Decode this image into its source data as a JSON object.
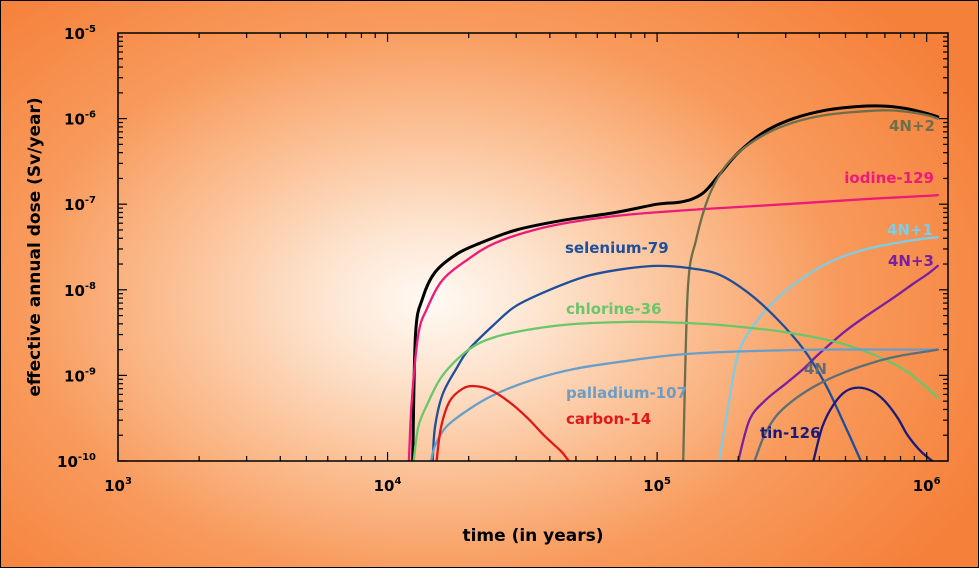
{
  "chart_data": {
    "type": "line",
    "xlabel": "time (in years)",
    "ylabel": "effective annual dose (Sv/year)",
    "x_scale": "log",
    "y_scale": "log",
    "xlim": [
      1000,
      1200000
    ],
    "ylim": [
      1e-10,
      1e-05
    ],
    "x_ticks": [
      {
        "value": 1000,
        "base": "10",
        "exp": "3"
      },
      {
        "value": 10000,
        "base": "10",
        "exp": "4"
      },
      {
        "value": 100000,
        "base": "10",
        "exp": "5"
      },
      {
        "value": 1000000,
        "base": "10",
        "exp": "6"
      }
    ],
    "y_ticks": [
      {
        "value": 1e-10,
        "base": "10",
        "exp": "-10"
      },
      {
        "value": 1e-09,
        "base": "10",
        "exp": "-9"
      },
      {
        "value": 1e-08,
        "base": "10",
        "exp": "-8"
      },
      {
        "value": 1e-07,
        "base": "10",
        "exp": "-7"
      },
      {
        "value": 1e-06,
        "base": "10",
        "exp": "-6"
      },
      {
        "value": 1e-05,
        "base": "10",
        "exp": "-5"
      }
    ],
    "grid": false,
    "series": [
      {
        "name": "",
        "color": "#000000",
        "points": [
          [
            12400,
            1e-10
          ],
          [
            12700,
            3e-09
          ],
          [
            13500,
            8e-09
          ],
          [
            15000,
            1.6e-08
          ],
          [
            18000,
            2.6e-08
          ],
          [
            22000,
            3.5e-08
          ],
          [
            30000,
            5e-08
          ],
          [
            45000,
            6.5e-08
          ],
          [
            70000,
            8e-08
          ],
          [
            100000,
            1e-07
          ],
          [
            120000,
            1.05e-07
          ],
          [
            135000,
            1.15e-07
          ],
          [
            150000,
            1.4e-07
          ],
          [
            170000,
            2.2e-07
          ],
          [
            200000,
            4e-07
          ],
          [
            250000,
            7e-07
          ],
          [
            320000,
            1e-06
          ],
          [
            420000,
            1.25e-06
          ],
          [
            550000,
            1.38e-06
          ],
          [
            700000,
            1.4e-06
          ],
          [
            850000,
            1.3e-06
          ],
          [
            1000000,
            1.15e-06
          ],
          [
            1100000,
            1.05e-06
          ]
        ]
      },
      {
        "name": "iodine-129",
        "color": "#ee1a7a",
        "points": [
          [
            12000,
            1e-10
          ],
          [
            12300,
            5e-10
          ],
          [
            13000,
            3e-09
          ],
          [
            14000,
            6e-09
          ],
          [
            16000,
            1.3e-08
          ],
          [
            20000,
            2.3e-08
          ],
          [
            25000,
            3.5e-08
          ],
          [
            35000,
            5e-08
          ],
          [
            50000,
            6.3e-08
          ],
          [
            80000,
            7.6e-08
          ],
          [
            150000,
            8.8e-08
          ],
          [
            300000,
            1e-07
          ],
          [
            600000,
            1.15e-07
          ],
          [
            1000000,
            1.25e-07
          ],
          [
            1100000,
            1.28e-07
          ]
        ]
      },
      {
        "name": "4N+2",
        "color": "#6e6e4a",
        "points": [
          [
            125000,
            1e-10
          ],
          [
            130000,
            1e-08
          ],
          [
            140000,
            4e-08
          ],
          [
            155000,
            1.2e-07
          ],
          [
            175000,
            2.5e-07
          ],
          [
            200000,
            4e-07
          ],
          [
            250000,
            6.5e-07
          ],
          [
            320000,
            9e-07
          ],
          [
            420000,
            1.1e-06
          ],
          [
            550000,
            1.2e-06
          ],
          [
            700000,
            1.25e-06
          ],
          [
            850000,
            1.2e-06
          ],
          [
            1000000,
            1.1e-06
          ],
          [
            1100000,
            1e-06
          ]
        ]
      },
      {
        "name": "4N+1",
        "color": "#7ecce6",
        "points": [
          [
            170000,
            1e-10
          ],
          [
            185000,
            5e-10
          ],
          [
            200000,
            1.8e-09
          ],
          [
            230000,
            4e-09
          ],
          [
            280000,
            8e-09
          ],
          [
            350000,
            1.4e-08
          ],
          [
            450000,
            2.2e-08
          ],
          [
            600000,
            3e-08
          ],
          [
            800000,
            3.6e-08
          ],
          [
            1000000,
            4e-08
          ],
          [
            1100000,
            4.1e-08
          ]
        ]
      },
      {
        "name": "4N+3",
        "color": "#7a1fa0",
        "points": [
          [
            200000,
            1e-10
          ],
          [
            220000,
            3e-10
          ],
          [
            250000,
            5e-10
          ],
          [
            300000,
            8e-10
          ],
          [
            350000,
            1.2e-09
          ],
          [
            400000,
            1.8e-09
          ],
          [
            500000,
            3.3e-09
          ],
          [
            600000,
            5e-09
          ],
          [
            750000,
            8e-09
          ],
          [
            900000,
            1.2e-08
          ],
          [
            1000000,
            1.5e-08
          ],
          [
            1100000,
            1.9e-08
          ]
        ]
      },
      {
        "name": "selenium-79",
        "color": "#1f4e9a",
        "points": [
          [
            14700,
            1e-10
          ],
          [
            15000,
            2.5e-10
          ],
          [
            16000,
            6e-10
          ],
          [
            18000,
            1.2e-09
          ],
          [
            20000,
            2e-09
          ],
          [
            25000,
            4e-09
          ],
          [
            30000,
            6.5e-09
          ],
          [
            40000,
            1e-08
          ],
          [
            55000,
            1.45e-08
          ],
          [
            75000,
            1.75e-08
          ],
          [
            100000,
            1.9e-08
          ],
          [
            130000,
            1.8e-08
          ],
          [
            170000,
            1.5e-08
          ],
          [
            220000,
            9e-09
          ],
          [
            280000,
            4.5e-09
          ],
          [
            350000,
            2e-09
          ],
          [
            420000,
            8e-10
          ],
          [
            500000,
            2.5e-10
          ],
          [
            570000,
            1e-10
          ]
        ]
      },
      {
        "name": "chlorine-36",
        "color": "#6ac66a",
        "points": [
          [
            12500,
            1e-10
          ],
          [
            13000,
            2.5e-10
          ],
          [
            14000,
            4.5e-10
          ],
          [
            16000,
            1e-09
          ],
          [
            20000,
            2e-09
          ],
          [
            25000,
            2.8e-09
          ],
          [
            35000,
            3.5e-09
          ],
          [
            50000,
            4e-09
          ],
          [
            75000,
            4.2e-09
          ],
          [
            100000,
            4.2e-09
          ],
          [
            150000,
            4e-09
          ],
          [
            220000,
            3.6e-09
          ],
          [
            300000,
            3.2e-09
          ],
          [
            450000,
            2.5e-09
          ],
          [
            650000,
            1.7e-09
          ],
          [
            850000,
            1.1e-09
          ],
          [
            1100000,
            5.5e-10
          ]
        ]
      },
      {
        "name": "palladium-107",
        "color": "#6a9ec8",
        "points": [
          [
            14500,
            1e-10
          ],
          [
            15000,
            1.5e-10
          ],
          [
            16500,
            2.5e-10
          ],
          [
            20000,
            4e-10
          ],
          [
            25000,
            6e-10
          ],
          [
            35000,
            9e-10
          ],
          [
            50000,
            1.2e-09
          ],
          [
            80000,
            1.5e-09
          ],
          [
            120000,
            1.75e-09
          ],
          [
            200000,
            1.9e-09
          ],
          [
            400000,
            2e-09
          ],
          [
            700000,
            2e-09
          ],
          [
            1100000,
            2e-09
          ]
        ]
      },
      {
        "name": "carbon-14",
        "color": "#e01818",
        "points": [
          [
            15200,
            1e-10
          ],
          [
            15800,
            2.5e-10
          ],
          [
            17000,
            5e-10
          ],
          [
            19000,
            7e-10
          ],
          [
            21000,
            7.5e-10
          ],
          [
            24000,
            6.8e-10
          ],
          [
            28000,
            5e-10
          ],
          [
            33000,
            3.2e-10
          ],
          [
            38000,
            2e-10
          ],
          [
            44000,
            1.3e-10
          ],
          [
            47000,
            1e-10
          ]
        ]
      },
      {
        "name": "4N",
        "color": "#5e6e78",
        "points": [
          [
            230000,
            1e-10
          ],
          [
            250000,
            2e-10
          ],
          [
            280000,
            3.5e-10
          ],
          [
            330000,
            5.5e-10
          ],
          [
            400000,
            8e-10
          ],
          [
            500000,
            1.1e-09
          ],
          [
            650000,
            1.45e-09
          ],
          [
            800000,
            1.7e-09
          ],
          [
            1000000,
            1.9e-09
          ],
          [
            1100000,
            2e-09
          ]
        ]
      },
      {
        "name": "tin-126",
        "color": "#1a1a7a",
        "points": [
          [
            380000,
            1e-10
          ],
          [
            410000,
            2.5e-10
          ],
          [
            450000,
            4.5e-10
          ],
          [
            500000,
            6.5e-10
          ],
          [
            560000,
            7.2e-10
          ],
          [
            630000,
            6.5e-10
          ],
          [
            700000,
            5e-10
          ],
          [
            780000,
            3.2e-10
          ],
          [
            850000,
            2e-10
          ],
          [
            950000,
            1.3e-10
          ],
          [
            1050000,
            1e-10
          ]
        ]
      }
    ]
  }
}
